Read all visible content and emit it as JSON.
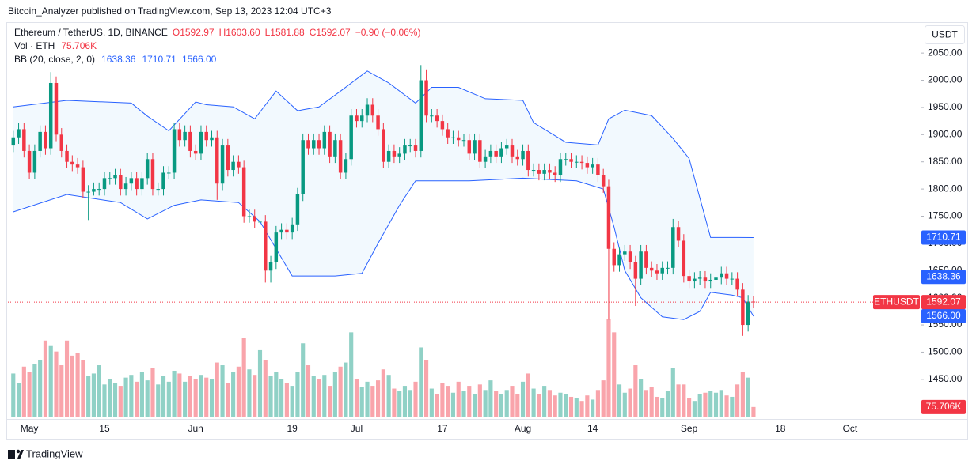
{
  "header": "Bitcoin_Analyzer published on TradingView.com, Sep 13, 2023 12:04 UTC+3",
  "footer": "TradingView",
  "chart_data": {
    "type": "candlestick",
    "title": "Ethereum / TetherUS, 1D, BINANCE",
    "legend_values": [
      "O1592.97",
      "H1603.60",
      "L1581.88",
      "C1592.07",
      "−0.90 (−0.06%)"
    ],
    "currency": "USDT",
    "symbol": "ETHUSDT",
    "last_label": "1592.07",
    "up_color": "#089981",
    "down_color": "#f23645",
    "x": [
      "2023-04-28",
      "2023-04-29",
      "2023-04-30",
      "2023-05-01",
      "2023-05-02",
      "2023-05-03",
      "2023-05-04",
      "2023-05-05",
      "2023-05-06",
      "2023-05-07",
      "2023-05-08",
      "2023-05-09",
      "2023-05-10",
      "2023-05-11",
      "2023-05-12",
      "2023-05-13",
      "2023-05-14",
      "2023-05-15",
      "2023-05-16",
      "2023-05-17",
      "2023-05-18",
      "2023-05-19",
      "2023-05-20",
      "2023-05-21",
      "2023-05-22",
      "2023-05-23",
      "2023-05-24",
      "2023-05-25",
      "2023-05-26",
      "2023-05-27",
      "2023-05-28",
      "2023-05-29",
      "2023-05-30",
      "2023-05-31",
      "2023-06-01",
      "2023-06-02",
      "2023-06-03",
      "2023-06-04",
      "2023-06-05",
      "2023-06-06",
      "2023-06-07",
      "2023-06-08",
      "2023-06-09",
      "2023-06-10",
      "2023-06-11",
      "2023-06-12",
      "2023-06-13",
      "2023-06-14",
      "2023-06-15",
      "2023-06-16",
      "2023-06-17",
      "2023-06-18",
      "2023-06-19",
      "2023-06-20",
      "2023-06-21",
      "2023-06-22",
      "2023-06-23",
      "2023-06-24",
      "2023-06-25",
      "2023-06-26",
      "2023-06-27",
      "2023-06-28",
      "2023-06-29",
      "2023-06-30",
      "2023-07-01",
      "2023-07-02",
      "2023-07-03",
      "2023-07-04",
      "2023-07-05",
      "2023-07-06",
      "2023-07-07",
      "2023-07-08",
      "2023-07-09",
      "2023-07-10",
      "2023-07-11",
      "2023-07-12",
      "2023-07-13",
      "2023-07-14",
      "2023-07-15",
      "2023-07-16",
      "2023-07-17",
      "2023-07-18",
      "2023-07-19",
      "2023-07-20",
      "2023-07-21",
      "2023-07-22",
      "2023-07-23",
      "2023-07-24",
      "2023-07-25",
      "2023-07-26",
      "2023-07-27",
      "2023-07-28",
      "2023-07-29",
      "2023-07-30",
      "2023-07-31",
      "2023-08-01",
      "2023-08-02",
      "2023-08-03",
      "2023-08-04",
      "2023-08-05",
      "2023-08-06",
      "2023-08-07",
      "2023-08-08",
      "2023-08-09",
      "2023-08-10",
      "2023-08-11",
      "2023-08-12",
      "2023-08-13",
      "2023-08-14",
      "2023-08-15",
      "2023-08-16",
      "2023-08-17",
      "2023-08-18",
      "2023-08-19",
      "2023-08-20",
      "2023-08-21",
      "2023-08-22",
      "2023-08-23",
      "2023-08-24",
      "2023-08-25",
      "2023-08-26",
      "2023-08-27",
      "2023-08-28",
      "2023-08-29",
      "2023-08-30",
      "2023-08-31",
      "2023-09-01",
      "2023-09-02",
      "2023-09-03",
      "2023-09-04",
      "2023-09-05",
      "2023-09-06",
      "2023-09-07",
      "2023-09-08",
      "2023-09-09",
      "2023-09-10",
      "2023-09-11",
      "2023-09-12",
      "2023-09-13"
    ],
    "open": [
      1880,
      1895,
      1910,
      1870,
      1830,
      1870,
      1905,
      1875,
      1995,
      1900,
      1870,
      1850,
      1845,
      1840,
      1795,
      1795,
      1800,
      1800,
      1820,
      1820,
      1825,
      1800,
      1810,
      1820,
      1800,
      1820,
      1855,
      1800,
      1800,
      1830,
      1830,
      1910,
      1890,
      1905,
      1870,
      1865,
      1905,
      1890,
      1895,
      1810,
      1880,
      1835,
      1850,
      1840,
      1750,
      1750,
      1740,
      1740,
      1650,
      1665,
      1720,
      1725,
      1720,
      1735,
      1790,
      1890,
      1875,
      1890,
      1875,
      1905,
      1860,
      1890,
      1830,
      1855,
      1935,
      1925,
      1935,
      1955,
      1935,
      1910,
      1850,
      1870,
      1860,
      1865,
      1880,
      1880,
      1870,
      2000,
      1935,
      1935,
      1925,
      1910,
      1895,
      1895,
      1890,
      1890,
      1865,
      1890,
      1850,
      1860,
      1870,
      1860,
      1875,
      1880,
      1860,
      1855,
      1870,
      1835,
      1835,
      1828,
      1835,
      1830,
      1825,
      1855,
      1855,
      1850,
      1850,
      1848,
      1840,
      1845,
      1825,
      1805,
      1690,
      1660,
      1680,
      1685,
      1665,
      1635,
      1685,
      1655,
      1650,
      1645,
      1655,
      1655,
      1730,
      1705,
      1640,
      1630,
      1635,
      1637,
      1630,
      1633,
      1637,
      1645,
      1635,
      1635,
      1615,
      1550,
      1592.97
    ],
    "high": [
      1907,
      1922,
      1922,
      1882,
      1882,
      1917,
      1917,
      2015,
      2007,
      1912,
      1882,
      1862,
      1857,
      1852,
      1807,
      1812,
      1812,
      1832,
      1832,
      1837,
      1837,
      1822,
      1832,
      1832,
      1832,
      1867,
      1867,
      1812,
      1842,
      1842,
      1922,
      1922,
      1917,
      1917,
      1882,
      1917,
      1917,
      1907,
      1907,
      1892,
      1892,
      1862,
      1862,
      1852,
      1762,
      1762,
      1752,
      1752,
      1677,
      1732,
      1737,
      1737,
      1747,
      1802,
      1902,
      1902,
      1902,
      1902,
      1917,
      1917,
      1902,
      1902,
      1867,
      1947,
      1947,
      1947,
      1967,
      1967,
      1947,
      1922,
      1882,
      1882,
      1877,
      1892,
      1892,
      1892,
      2028,
      2020,
      1947,
      1947,
      1937,
      1922,
      1907,
      1907,
      1902,
      1902,
      1902,
      1902,
      1872,
      1882,
      1882,
      1887,
      1892,
      1892,
      1872,
      1882,
      1882,
      1847,
      1847,
      1847,
      1847,
      1842,
      1867,
      1867,
      1867,
      1862,
      1862,
      1860,
      1857,
      1857,
      1837,
      1817,
      1702,
      1692,
      1697,
      1697,
      1677,
      1697,
      1697,
      1667,
      1662,
      1667,
      1667,
      1745,
      1742,
      1717,
      1652,
      1647,
      1649,
      1649,
      1645,
      1649,
      1657,
      1657,
      1647,
      1647,
      1627,
      1605,
      1603.6
    ],
    "low": [
      1868,
      1883,
      1858,
      1818,
      1818,
      1858,
      1863,
      1863,
      1888,
      1858,
      1838,
      1833,
      1828,
      1783,
      1743,
      1788,
      1788,
      1788,
      1808,
      1808,
      1788,
      1788,
      1798,
      1788,
      1788,
      1808,
      1788,
      1788,
      1788,
      1818,
      1818,
      1878,
      1878,
      1858,
      1853,
      1853,
      1878,
      1878,
      1780,
      1798,
      1823,
      1823,
      1828,
      1738,
      1738,
      1728,
      1728,
      1628,
      1628,
      1653,
      1708,
      1708,
      1708,
      1723,
      1778,
      1863,
      1863,
      1863,
      1863,
      1848,
      1848,
      1818,
      1818,
      1843,
      1913,
      1913,
      1923,
      1923,
      1898,
      1838,
      1838,
      1848,
      1848,
      1853,
      1868,
      1858,
      1858,
      1923,
      1923,
      1913,
      1898,
      1883,
      1883,
      1878,
      1878,
      1853,
      1853,
      1838,
      1838,
      1848,
      1848,
      1848,
      1863,
      1848,
      1843,
      1843,
      1823,
      1823,
      1816,
      1816,
      1818,
      1813,
      1813,
      1843,
      1838,
      1838,
      1836,
      1828,
      1828,
      1813,
      1793,
      1560,
      1648,
      1648,
      1668,
      1653,
      1585,
      1623,
      1643,
      1638,
      1633,
      1633,
      1643,
      1643,
      1693,
      1628,
      1618,
      1618,
      1623,
      1618,
      1618,
      1621,
      1625,
      1623,
      1623,
      1603,
      1530,
      1538,
      1581.88
    ],
    "close": [
      1895,
      1910,
      1870,
      1830,
      1870,
      1905,
      1875,
      1995,
      1900,
      1870,
      1850,
      1845,
      1840,
      1795,
      1795,
      1800,
      1800,
      1820,
      1820,
      1825,
      1800,
      1810,
      1820,
      1800,
      1820,
      1855,
      1800,
      1800,
      1830,
      1830,
      1910,
      1890,
      1905,
      1870,
      1865,
      1905,
      1890,
      1895,
      1810,
      1880,
      1835,
      1850,
      1840,
      1750,
      1750,
      1740,
      1740,
      1650,
      1665,
      1720,
      1725,
      1720,
      1735,
      1790,
      1890,
      1875,
      1890,
      1875,
      1905,
      1860,
      1890,
      1830,
      1855,
      1935,
      1925,
      1935,
      1955,
      1935,
      1910,
      1850,
      1870,
      1860,
      1865,
      1880,
      1880,
      1870,
      2000,
      1935,
      1935,
      1925,
      1910,
      1895,
      1895,
      1890,
      1890,
      1865,
      1890,
      1850,
      1860,
      1870,
      1860,
      1875,
      1880,
      1860,
      1855,
      1870,
      1835,
      1835,
      1828,
      1835,
      1830,
      1825,
      1855,
      1855,
      1850,
      1850,
      1848,
      1840,
      1845,
      1825,
      1805,
      1690,
      1660,
      1680,
      1685,
      1665,
      1635,
      1685,
      1655,
      1650,
      1645,
      1655,
      1655,
      1730,
      1705,
      1640,
      1630,
      1635,
      1637,
      1630,
      1633,
      1637,
      1645,
      1635,
      1635,
      1615,
      1550,
      1592.97,
      1592.07
    ],
    "volume": {
      "name": "Vol · ETH",
      "last_label": "75.706K",
      "values": [
        320000,
        250000,
        370000,
        330000,
        390000,
        420000,
        560000,
        520000,
        480000,
        380000,
        560000,
        450000,
        470000,
        420000,
        300000,
        320000,
        380000,
        240000,
        280000,
        250000,
        230000,
        290000,
        310000,
        260000,
        330000,
        270000,
        360000,
        240000,
        300000,
        260000,
        340000,
        320000,
        260000,
        300000,
        280000,
        310000,
        290000,
        280000,
        400000,
        380000,
        250000,
        330000,
        370000,
        580000,
        350000,
        310000,
        490000,
        420000,
        300000,
        330000,
        280000,
        250000,
        230000,
        330000,
        540000,
        380000,
        300000,
        280000,
        310000,
        230000,
        330000,
        370000,
        400000,
        620000,
        280000,
        220000,
        260000,
        230000,
        270000,
        350000,
        310000,
        210000,
        190000,
        230000,
        200000,
        260000,
        510000,
        420000,
        210000,
        170000,
        250000,
        230000,
        180000,
        260000,
        190000,
        230000,
        170000,
        240000,
        200000,
        270000,
        190000,
        170000,
        200000,
        230000,
        170000,
        260000,
        320000,
        210000,
        170000,
        230000,
        200000,
        160000,
        180000,
        170000,
        150000,
        140000,
        120000,
        160000,
        130000,
        200000,
        270000,
        720000,
        620000,
        240000,
        180000,
        210000,
        380000,
        280000,
        200000,
        220000,
        150000,
        140000,
        190000,
        360000,
        240000,
        240000,
        140000,
        120000,
        170000,
        180000,
        190000,
        180000,
        200000,
        160000,
        150000,
        240000,
        330000,
        290000,
        75706
      ]
    },
    "bollinger": {
      "name": "BB (20, close, 2, 0)",
      "color": "#2962ff",
      "basis": {
        "value": 1638.36,
        "label": "1638.36"
      },
      "upper": {
        "label": "1710.71",
        "x": [
          "2023-04-28",
          "2023-05-08",
          "2023-05-20",
          "2023-05-23",
          "2023-05-27",
          "2023-06-01",
          "2023-06-03",
          "2023-06-08",
          "2023-06-12",
          "2023-06-16",
          "2023-06-20",
          "2023-06-24",
          "2023-06-28",
          "2023-07-03",
          "2023-07-07",
          "2023-07-12",
          "2023-07-15",
          "2023-07-20",
          "2023-07-25",
          "2023-08-01",
          "2023-08-03",
          "2023-08-09",
          "2023-08-15",
          "2023-08-17",
          "2023-08-20",
          "2023-08-25",
          "2023-08-29",
          "2023-09-01",
          "2023-09-05",
          "2023-09-10",
          "2023-09-13"
        ],
        "values": [
          1951,
          1963,
          1958,
          1934,
          1907,
          1960,
          1955,
          1951,
          1929,
          1980,
          1944,
          1951,
          1980,
          2017,
          1995,
          1958,
          1987,
          1987,
          1966,
          1963,
          1922,
          1886,
          1881,
          1929,
          1945,
          1935,
          1893,
          1856,
          1711,
          1711,
          1710.71
        ]
      },
      "lower": {
        "label": "1566.00",
        "x": [
          "2023-04-28",
          "2023-05-08",
          "2023-05-18",
          "2023-05-23",
          "2023-05-28",
          "2023-06-02",
          "2023-06-09",
          "2023-06-13",
          "2023-06-16",
          "2023-06-19",
          "2023-06-27",
          "2023-07-02",
          "2023-07-05",
          "2023-07-09",
          "2023-07-12",
          "2023-07-22",
          "2023-08-01",
          "2023-08-11",
          "2023-08-16",
          "2023-08-18",
          "2023-08-20",
          "2023-08-23",
          "2023-08-27",
          "2023-08-31",
          "2023-09-03",
          "2023-09-05",
          "2023-09-09",
          "2023-09-11",
          "2023-09-13"
        ],
        "values": [
          1758,
          1790,
          1775,
          1745,
          1770,
          1780,
          1775,
          1740,
          1690,
          1640,
          1640,
          1645,
          1700,
          1770,
          1815,
          1815,
          1820,
          1815,
          1800,
          1730,
          1650,
          1600,
          1565,
          1560,
          1575,
          1610,
          1605,
          1600,
          1566
        ]
      }
    },
    "xlim": [
      "2023-04-27",
      "2023-10-14"
    ],
    "xticks": [
      {
        "value": "2023-05-01",
        "label": "May"
      },
      {
        "value": "2023-05-15",
        "label": "15"
      },
      {
        "value": "2023-06-01",
        "label": "Jun"
      },
      {
        "value": "2023-06-19",
        "label": "19"
      },
      {
        "value": "2023-07-01",
        "label": "Jul"
      },
      {
        "value": "2023-07-17",
        "label": "17"
      },
      {
        "value": "2023-08-01",
        "label": "Aug"
      },
      {
        "value": "2023-08-14",
        "label": "14"
      },
      {
        "value": "2023-09-01",
        "label": "Sep"
      },
      {
        "value": "2023-09-18",
        "label": "18"
      },
      {
        "value": "2023-10-01",
        "label": "Oct"
      }
    ],
    "ylim": [
      1380,
      2104
    ],
    "yticks": [
      {
        "value": 1450,
        "label": "1450.00"
      },
      {
        "value": 1500,
        "label": "1500.00"
      },
      {
        "value": 1550,
        "label": "1550.00"
      },
      {
        "value": 1600,
        "label": "1600.00"
      },
      {
        "value": 1650,
        "label": "1650.00"
      },
      {
        "value": 1700,
        "label": "1700.00"
      },
      {
        "value": 1750,
        "label": "1750.00"
      },
      {
        "value": 1800,
        "label": "1800.00"
      },
      {
        "value": 1850,
        "label": "1850.00"
      },
      {
        "value": 1900,
        "label": "1900.00"
      },
      {
        "value": 1950,
        "label": "1950.00"
      },
      {
        "value": 2000,
        "label": "2000.00"
      },
      {
        "value": 2050,
        "label": "2050.00"
      }
    ],
    "grid": false
  }
}
